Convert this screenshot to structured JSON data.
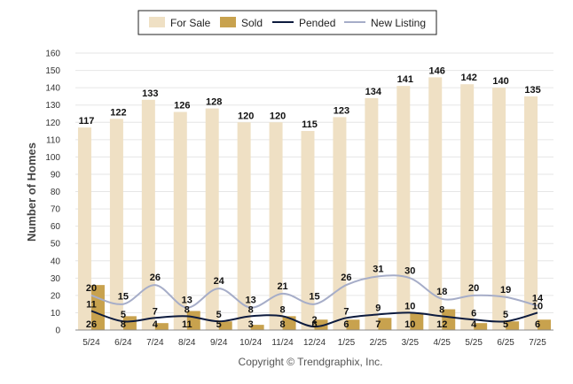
{
  "chart_data": {
    "type": "bar",
    "ylabel": "Number of Homes",
    "ylim": [
      0,
      160
    ],
    "ytick_step": 10,
    "grid": true,
    "legend_position": "top-center",
    "categories": [
      "5/24",
      "6/24",
      "7/24",
      "8/24",
      "9/24",
      "10/24",
      "11/24",
      "12/24",
      "1/25",
      "2/25",
      "3/25",
      "4/25",
      "5/25",
      "6/25",
      "7/25"
    ],
    "series": [
      {
        "name": "For Sale",
        "kind": "bar",
        "color": "#efe0c4",
        "values": [
          117,
          122,
          133,
          126,
          128,
          120,
          120,
          115,
          123,
          134,
          141,
          146,
          142,
          140,
          135
        ]
      },
      {
        "name": "Sold",
        "kind": "bar",
        "color": "#c8a24e",
        "values": [
          26,
          8,
          4,
          11,
          5,
          3,
          8,
          6,
          6,
          7,
          10,
          12,
          4,
          5,
          6
        ]
      },
      {
        "name": "Pended",
        "kind": "line",
        "color": "#0d1b3e",
        "values": [
          11,
          5,
          7,
          8,
          5,
          8,
          8,
          2,
          7,
          9,
          10,
          8,
          6,
          5,
          10
        ]
      },
      {
        "name": "New Listing",
        "kind": "line",
        "color": "#a6adc8",
        "values": [
          20,
          15,
          26,
          13,
          24,
          13,
          21,
          15,
          26,
          31,
          30,
          18,
          20,
          19,
          14
        ]
      }
    ]
  },
  "footer": {
    "credit": "Copyright © Trendgraphix, Inc."
  }
}
